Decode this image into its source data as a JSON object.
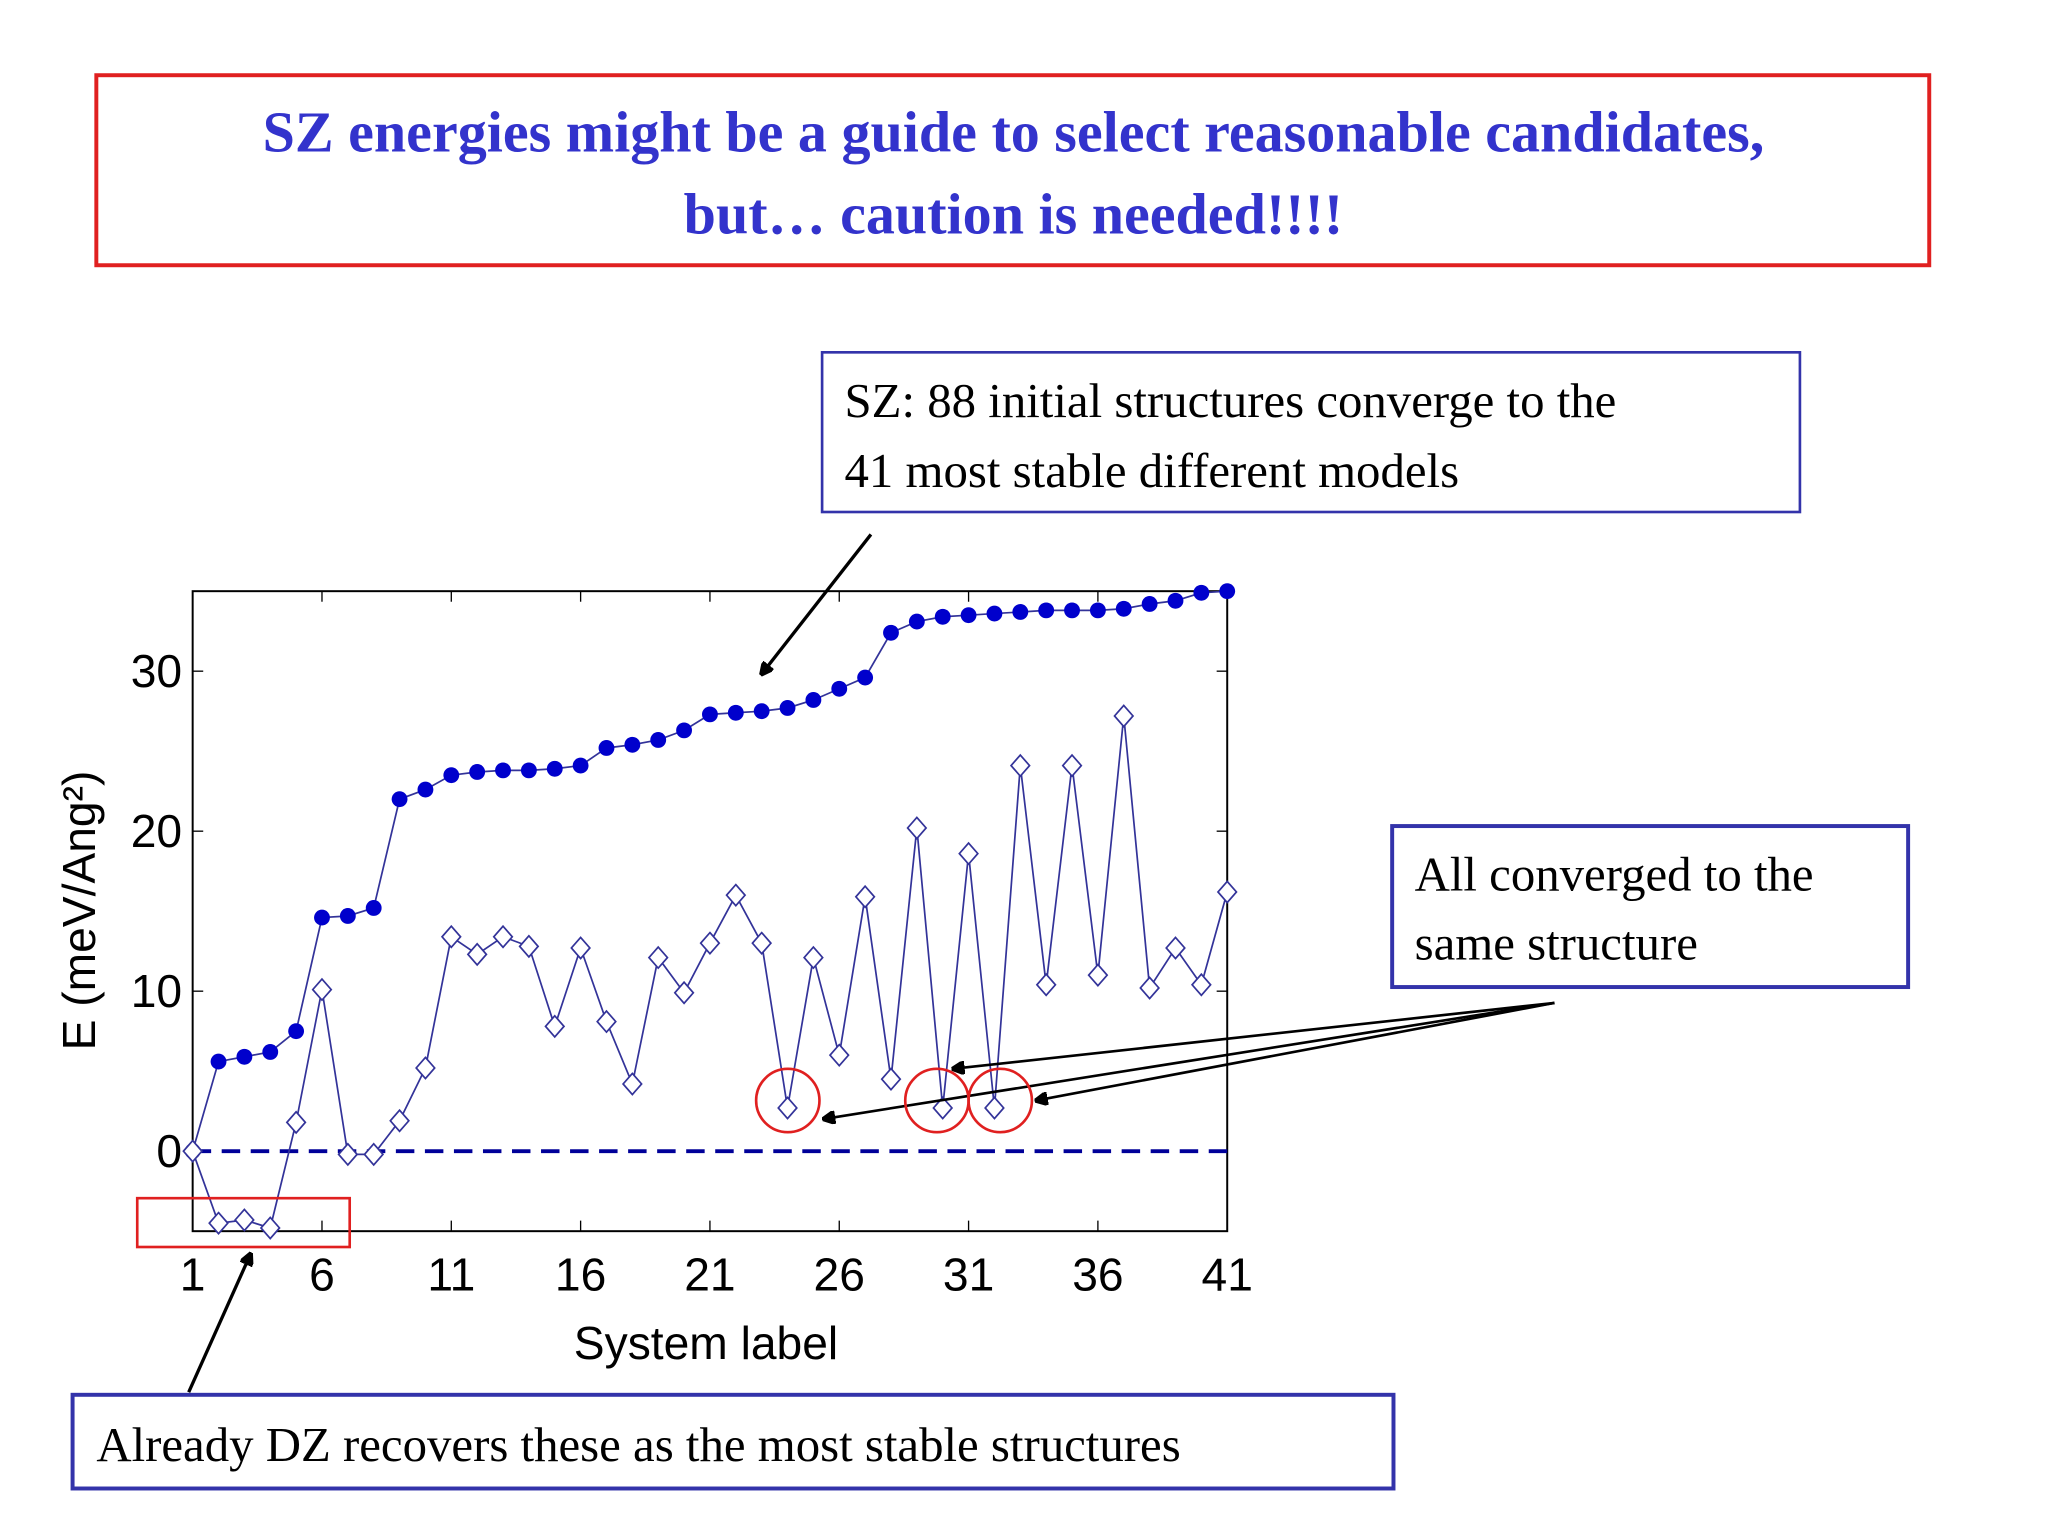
{
  "title": [
    "SZ energies might be a guide to select reasonable candidates,",
    "but… caution is needed!!!!"
  ],
  "annotations": [
    {
      "lines": [
        "SZ: 88 initial structures converge to the",
        "41 most stable different models"
      ]
    },
    {
      "lines": [
        "All converged to the",
        "same structure"
      ]
    },
    {
      "lines": [
        "Already DZ recovers these as the most stable structures"
      ]
    }
  ],
  "chart_data": {
    "type": "line",
    "x_label": "System label",
    "y_label": "E (meV/Ang²)",
    "x": [
      1,
      2,
      3,
      4,
      5,
      6,
      7,
      8,
      9,
      10,
      11,
      12,
      13,
      14,
      15,
      16,
      17,
      18,
      19,
      20,
      21,
      22,
      23,
      24,
      25,
      26,
      27,
      28,
      29,
      30,
      31,
      32,
      33,
      34,
      35,
      36,
      37,
      38,
      39,
      40,
      41
    ],
    "series": [
      {
        "color": "#0000cc",
        "marker": "filled-circle",
        "values": [
          0,
          5.6,
          5.9,
          6.2,
          7.5,
          14.6,
          14.7,
          15.2,
          22.0,
          22.6,
          23.5,
          23.7,
          23.8,
          23.8,
          23.9,
          24.1,
          25.2,
          25.4,
          25.7,
          26.3,
          27.3,
          27.4,
          27.5,
          27.7,
          28.2,
          28.9,
          29.6,
          32.4,
          33.1,
          33.4,
          33.5,
          33.6,
          33.7,
          33.8,
          33.8,
          33.8,
          33.9,
          34.2,
          34.4,
          34.9,
          35.0
        ]
      },
      {
        "color": "#333399",
        "marker": "open-diamond",
        "values": [
          0,
          -4.5,
          -4.3,
          -4.8,
          1.8,
          10.1,
          -0.2,
          -0.2,
          1.9,
          5.2,
          13.4,
          12.3,
          13.4,
          12.8,
          7.8,
          12.7,
          8.1,
          4.2,
          12.1,
          9.9,
          13.0,
          16.0,
          13.0,
          2.7,
          12.1,
          6.0,
          15.9,
          4.5,
          20.2,
          2.7,
          18.6,
          2.7,
          24.1,
          10.4,
          24.1,
          11.0,
          27.2,
          10.2,
          12.7,
          10.4,
          16.2
        ]
      }
    ],
    "reference_line": 0,
    "reference_color": "#000099",
    "xlim": [
      1,
      41
    ],
    "xticks": [
      1,
      6,
      11,
      16,
      21,
      26,
      31,
      36,
      41
    ],
    "ylim": [
      -5,
      35
    ],
    "yticks": [
      0,
      10,
      20,
      30
    ]
  }
}
